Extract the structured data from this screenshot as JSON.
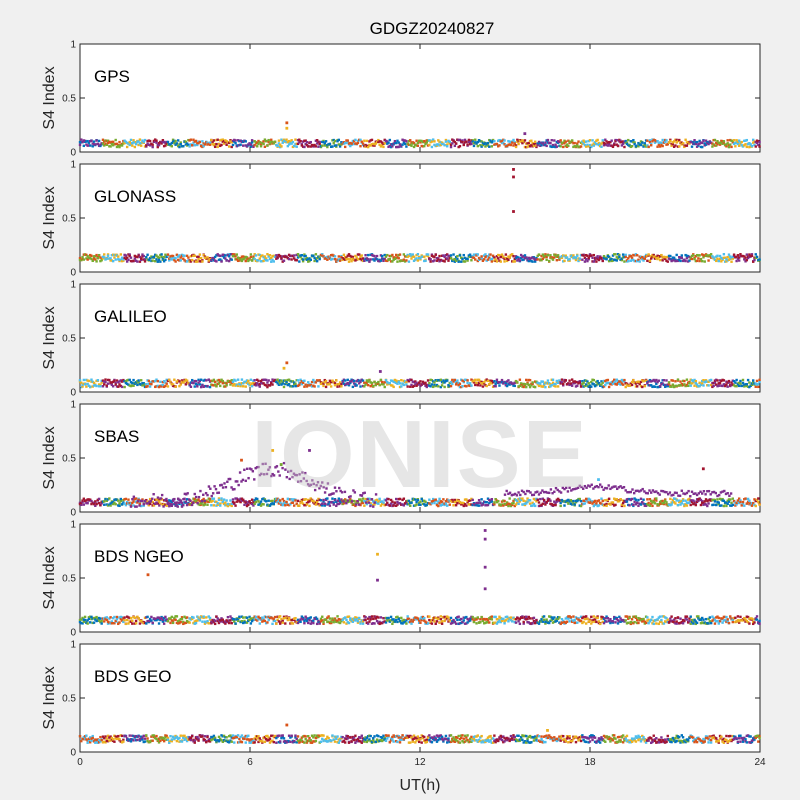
{
  "figure": {
    "title": "GDGZ20240827",
    "xlabel": "UT(h)",
    "watermark": "IONISE",
    "background": "#f0f0f0"
  },
  "series_colors": [
    "#0072BD",
    "#D95319",
    "#EDB120",
    "#7E2F8E",
    "#77AC30",
    "#4DBEEE",
    "#A2142F"
  ],
  "chart_data": [
    {
      "type": "scatter",
      "panel": "GPS",
      "ylabel": "S4 Index",
      "xlim": [
        0,
        24
      ],
      "ylim": [
        0,
        1
      ],
      "xticks": [
        0,
        6,
        12,
        18,
        24
      ],
      "yticks": [
        0,
        0.5,
        1
      ],
      "xtick_labels": [
        "0",
        "6",
        "12",
        "18",
        "24"
      ],
      "ytick_labels": [
        "0",
        "0.5",
        "1"
      ],
      "baseline_s4": 0.08,
      "notable_points": [
        {
          "x": 7.3,
          "y": 0.27
        },
        {
          "x": 7.3,
          "y": 0.22
        },
        {
          "x": 15.7,
          "y": 0.17
        }
      ]
    },
    {
      "type": "scatter",
      "panel": "GLONASS",
      "ylabel": "S4 Index",
      "xlim": [
        0,
        24
      ],
      "ylim": [
        0,
        1
      ],
      "xticks": [
        0,
        6,
        12,
        18,
        24
      ],
      "yticks": [
        0,
        0.5,
        1
      ],
      "xtick_labels": [
        "0",
        "6",
        "12",
        "18",
        "24"
      ],
      "ytick_labels": [
        "0",
        "0.5",
        "1"
      ],
      "baseline_s4": 0.13,
      "notable_points": [
        {
          "x": 15.3,
          "y": 0.95
        },
        {
          "x": 15.3,
          "y": 0.88
        },
        {
          "x": 15.3,
          "y": 0.56
        }
      ]
    },
    {
      "type": "scatter",
      "panel": "GALILEO",
      "ylabel": "S4 Index",
      "xlim": [
        0,
        24
      ],
      "ylim": [
        0,
        1
      ],
      "xticks": [
        0,
        6,
        12,
        18,
        24
      ],
      "yticks": [
        0,
        0.5,
        1
      ],
      "xtick_labels": [
        "0",
        "6",
        "12",
        "18",
        "24"
      ],
      "ytick_labels": [
        "0",
        "0.5",
        "1"
      ],
      "baseline_s4": 0.08,
      "notable_points": [
        {
          "x": 7.3,
          "y": 0.27
        },
        {
          "x": 7.2,
          "y": 0.22
        },
        {
          "x": 10.6,
          "y": 0.19
        }
      ]
    },
    {
      "type": "scatter",
      "panel": "SBAS",
      "ylabel": "S4 Index",
      "xlim": [
        0,
        24
      ],
      "ylim": [
        0,
        1
      ],
      "xticks": [
        0,
        6,
        12,
        18,
        24
      ],
      "yticks": [
        0,
        0.5,
        1
      ],
      "xtick_labels": [
        "0",
        "6",
        "12",
        "18",
        "24"
      ],
      "ytick_labels": [
        "0",
        "0.5",
        "1"
      ],
      "baseline_s4": 0.09,
      "notable_points": [
        {
          "x": 5.7,
          "y": 0.48
        },
        {
          "x": 6.8,
          "y": 0.57
        },
        {
          "x": 8.1,
          "y": 0.57
        },
        {
          "x": 7.1,
          "y": 0.44
        },
        {
          "x": 18.3,
          "y": 0.3
        },
        {
          "x": 22.0,
          "y": 0.4
        }
      ]
    },
    {
      "type": "scatter",
      "panel": "BDS NGEO",
      "ylabel": "S4 Index",
      "xlim": [
        0,
        24
      ],
      "ylim": [
        0,
        1
      ],
      "xticks": [
        0,
        6,
        12,
        18,
        24
      ],
      "yticks": [
        0,
        0.5,
        1
      ],
      "xtick_labels": [
        "0",
        "6",
        "12",
        "18",
        "24"
      ],
      "ytick_labels": [
        "0",
        "0.5",
        "1"
      ],
      "baseline_s4": 0.11,
      "notable_points": [
        {
          "x": 2.4,
          "y": 0.53
        },
        {
          "x": 10.5,
          "y": 0.72
        },
        {
          "x": 10.5,
          "y": 0.48
        },
        {
          "x": 14.3,
          "y": 0.94
        },
        {
          "x": 14.3,
          "y": 0.86
        },
        {
          "x": 14.3,
          "y": 0.6
        },
        {
          "x": 14.3,
          "y": 0.4
        }
      ]
    },
    {
      "type": "scatter",
      "panel": "BDS GEO",
      "ylabel": "S4 Index",
      "xlim": [
        0,
        24
      ],
      "ylim": [
        0,
        1
      ],
      "xticks": [
        0,
        6,
        12,
        18,
        24
      ],
      "yticks": [
        0,
        0.5,
        1
      ],
      "xtick_labels": [
        "0",
        "6",
        "12",
        "18",
        "24"
      ],
      "ytick_labels": [
        "0",
        "0.5",
        "1"
      ],
      "baseline_s4": 0.12,
      "notable_points": [
        {
          "x": 7.3,
          "y": 0.25
        },
        {
          "x": 16.5,
          "y": 0.2
        }
      ]
    }
  ]
}
